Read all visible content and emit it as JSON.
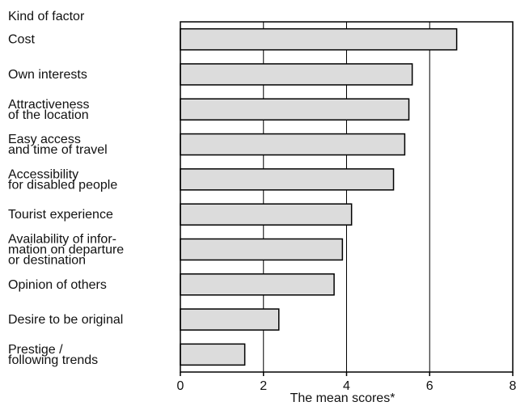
{
  "chart_data": {
    "type": "bar",
    "orientation": "horizontal",
    "category_header": "Kind of factor",
    "categories": [
      [
        "Cost"
      ],
      [
        "Own interests"
      ],
      [
        "Attractiveness",
        "of the location"
      ],
      [
        "Easy access",
        "and time of travel"
      ],
      [
        "Accessibility",
        "for disabled people"
      ],
      [
        "Tourist experience"
      ],
      [
        "Availability of infor-",
        "mation on departure",
        "or destination"
      ],
      [
        "Opinion of others"
      ],
      [
        "Desire to be original"
      ],
      [
        "Prestige /",
        "following trends"
      ]
    ],
    "values": [
      6.65,
      5.58,
      5.5,
      5.4,
      5.13,
      4.12,
      3.9,
      3.7,
      2.37,
      1.55
    ],
    "xlabel": "The mean scores*",
    "ylabel": "",
    "title": "",
    "xlim": [
      0,
      8
    ],
    "xticks": [
      "0",
      "2",
      "4",
      "6",
      "8"
    ],
    "grid": "vertical",
    "bar_color": "#dcdcdc",
    "bar_edge_color": "#000000"
  }
}
